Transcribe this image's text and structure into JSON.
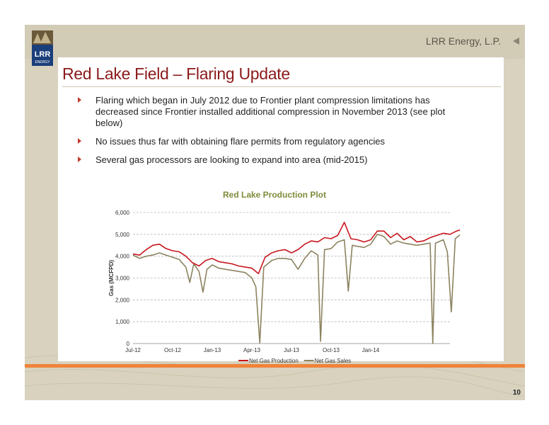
{
  "header": {
    "company": "LRR Energy, L.P.",
    "logo_text": "LRR",
    "logo_subtext": "ENERGY"
  },
  "slide": {
    "title": "Red Lake Field – Flaring Update",
    "page_number": "10",
    "bullets": [
      "Flaring which began in July 2012 due to Frontier plant compression limitations has decreased since Frontier installed additional compression in November 2013 (see plot below)",
      "No issues thus far with obtaining flare permits from regulatory agencies",
      "Several gas processors are looking to expand into area (mid-2015)"
    ]
  },
  "colors": {
    "title": "#8b1a1a",
    "chart_title": "#7e8c3a",
    "production": "#c8161d",
    "sales": "#8c8360",
    "accent_orange": "#f0833a"
  },
  "chart_data": {
    "type": "line",
    "title": "Red Lake Production Plot",
    "ylabel": "Gas (MCFPD)",
    "xlabel": "",
    "x_tick_labels": [
      "Jul-12",
      "Oct-12",
      "Jan-13",
      "Apr-13",
      "Jul-13",
      "Oct-13",
      "Jan-14"
    ],
    "x_range_months": [
      0,
      24
    ],
    "ylim": [
      0,
      6000
    ],
    "y_ticks": [
      "0",
      "1,000",
      "2,000",
      "3,000",
      "4,000",
      "5,000",
      "6,000"
    ],
    "grid": true,
    "legend_position": "bottom",
    "series": [
      {
        "name": "Net Gas Production",
        "color": "#c8161d",
        "points": [
          [
            0,
            4100
          ],
          [
            0.5,
            4050
          ],
          [
            1,
            4300
          ],
          [
            1.5,
            4500
          ],
          [
            2,
            4550
          ],
          [
            2.5,
            4350
          ],
          [
            3,
            4250
          ],
          [
            3.5,
            4200
          ],
          [
            4,
            4000
          ],
          [
            4.5,
            3700
          ],
          [
            5,
            3550
          ],
          [
            5.5,
            3800
          ],
          [
            6,
            3900
          ],
          [
            6.5,
            3750
          ],
          [
            7,
            3700
          ],
          [
            7.5,
            3650
          ],
          [
            8,
            3550
          ],
          [
            8.5,
            3500
          ],
          [
            9,
            3450
          ],
          [
            9.5,
            3200
          ],
          [
            10,
            3950
          ],
          [
            10.5,
            4150
          ],
          [
            11,
            4250
          ],
          [
            11.5,
            4300
          ],
          [
            12,
            4150
          ],
          [
            12.5,
            4300
          ],
          [
            13,
            4550
          ],
          [
            13.5,
            4700
          ],
          [
            14,
            4650
          ],
          [
            14.5,
            4850
          ],
          [
            15,
            4800
          ],
          [
            15.5,
            4950
          ],
          [
            16,
            5550
          ],
          [
            16.5,
            4800
          ],
          [
            17,
            4750
          ],
          [
            17.5,
            4650
          ],
          [
            18,
            4750
          ],
          [
            18.5,
            5150
          ],
          [
            19,
            5150
          ],
          [
            19.5,
            4850
          ],
          [
            20,
            5050
          ],
          [
            20.5,
            4750
          ],
          [
            21,
            4900
          ],
          [
            21.5,
            4650
          ],
          [
            22,
            4700
          ],
          [
            22.5,
            4850
          ],
          [
            23,
            4950
          ],
          [
            23.5,
            5050
          ],
          [
            24,
            5000
          ],
          [
            24.5,
            5150
          ],
          [
            25,
            5250
          ]
        ]
      },
      {
        "name": "Net Gas Sales",
        "color": "#8c8360",
        "points": [
          [
            0,
            4050
          ],
          [
            0.5,
            3900
          ],
          [
            1,
            4000
          ],
          [
            1.5,
            4050
          ],
          [
            2,
            4150
          ],
          [
            2.5,
            4050
          ],
          [
            3,
            3950
          ],
          [
            3.5,
            3850
          ],
          [
            4,
            3500
          ],
          [
            4.3,
            2800
          ],
          [
            4.6,
            3650
          ],
          [
            5,
            3300
          ],
          [
            5.3,
            2350
          ],
          [
            5.6,
            3400
          ],
          [
            6,
            3600
          ],
          [
            6.5,
            3450
          ],
          [
            7,
            3400
          ],
          [
            7.5,
            3350
          ],
          [
            8,
            3300
          ],
          [
            8.5,
            3250
          ],
          [
            9,
            3000
          ],
          [
            9.3,
            2600
          ],
          [
            9.6,
            30
          ],
          [
            9.9,
            3500
          ],
          [
            10.5,
            3800
          ],
          [
            11,
            3900
          ],
          [
            11.5,
            3900
          ],
          [
            12,
            3850
          ],
          [
            12.5,
            3400
          ],
          [
            13,
            3900
          ],
          [
            13.5,
            4250
          ],
          [
            14,
            4050
          ],
          [
            14.2,
            100
          ],
          [
            14.5,
            4300
          ],
          [
            15,
            4350
          ],
          [
            15.5,
            4650
          ],
          [
            16,
            4750
          ],
          [
            16.3,
            2400
          ],
          [
            16.6,
            4500
          ],
          [
            17,
            4450
          ],
          [
            17.5,
            4400
          ],
          [
            18,
            4550
          ],
          [
            18.5,
            5000
          ],
          [
            19,
            4900
          ],
          [
            19.5,
            4550
          ],
          [
            20,
            4700
          ],
          [
            20.5,
            4600
          ],
          [
            21,
            4550
          ],
          [
            21.5,
            4500
          ],
          [
            22,
            4550
          ],
          [
            22.5,
            4600
          ],
          [
            22.7,
            0
          ],
          [
            22.9,
            4600
          ],
          [
            23.5,
            4750
          ],
          [
            23.8,
            4200
          ],
          [
            24.1,
            1450
          ],
          [
            24.4,
            4800
          ],
          [
            24.7,
            4950
          ],
          [
            25,
            5100
          ]
        ]
      }
    ]
  }
}
